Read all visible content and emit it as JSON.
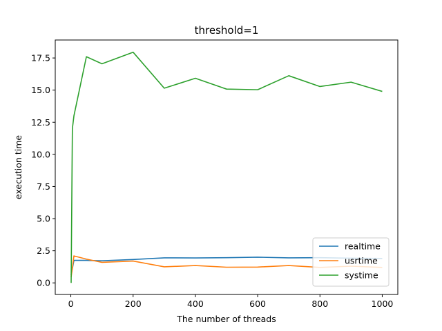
{
  "chart_data": {
    "type": "line",
    "title": "threshold=1",
    "xlabel": "The number of threads",
    "ylabel": "execution time",
    "xlim": [
      -50,
      1050
    ],
    "ylim": [
      -0.9,
      18.9
    ],
    "x_ticks": [
      0,
      200,
      400,
      600,
      800,
      1000
    ],
    "x_tick_labels": [
      "0",
      "200",
      "400",
      "600",
      "800",
      "1000"
    ],
    "y_ticks": [
      0,
      2.5,
      5,
      7.5,
      10,
      12.5,
      15,
      17.5
    ],
    "y_tick_labels": [
      "0.0",
      "2.5",
      "5.0",
      "7.5",
      "10.0",
      "12.5",
      "15.0",
      "17.5"
    ],
    "grid": false,
    "legend_position": "lower-right",
    "series": [
      {
        "name": "realtime",
        "color": "#1f77b4",
        "x": [
          1,
          10,
          50,
          100,
          200,
          300,
          400,
          500,
          600,
          700,
          800,
          900,
          1000
        ],
        "y": [
          0.6,
          1.75,
          1.75,
          1.72,
          1.82,
          1.95,
          1.94,
          1.96,
          2.0,
          1.95,
          1.96,
          1.92,
          1.9
        ]
      },
      {
        "name": "usrtime",
        "color": "#ff7f0e",
        "x": [
          1,
          10,
          50,
          100,
          200,
          300,
          400,
          500,
          600,
          700,
          800,
          900,
          1000
        ],
        "y": [
          0.45,
          2.1,
          1.85,
          1.6,
          1.7,
          1.25,
          1.35,
          1.22,
          1.23,
          1.35,
          1.2,
          1.3,
          1.2
        ]
      },
      {
        "name": "systime",
        "color": "#2ca02c",
        "x": [
          1,
          5,
          10,
          50,
          100,
          200,
          300,
          400,
          500,
          600,
          700,
          800,
          900,
          1000
        ],
        "y": [
          0.0,
          12.0,
          13.0,
          17.6,
          17.05,
          17.95,
          15.15,
          15.92,
          15.08,
          15.03,
          16.12,
          15.28,
          15.62,
          14.9
        ]
      }
    ]
  }
}
